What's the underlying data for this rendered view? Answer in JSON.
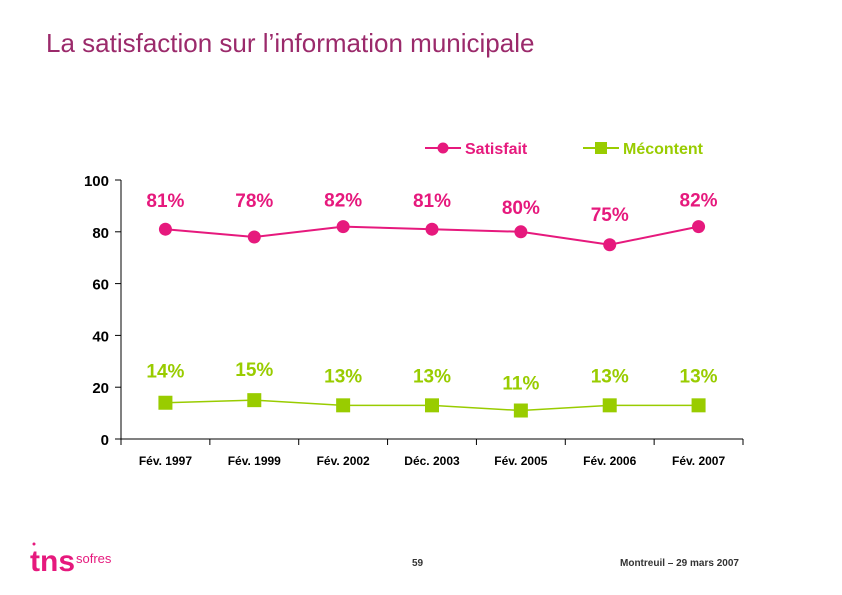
{
  "header": {
    "title": "La satisfaction sur l’information municipale"
  },
  "footer": {
    "page_number": "59",
    "location_date": "Montreuil – 29 mars 2007"
  },
  "logo": {
    "brand": "tns",
    "sub": "sofres"
  },
  "colors": {
    "title": "#9b2a6b",
    "satisfait": "#e6197d",
    "mecontent": "#99cc00"
  },
  "chart_data": {
    "type": "line",
    "categories": [
      "Fév. 1997",
      "Fév. 1999",
      "Fév. 2002",
      "Déc. 2003",
      "Fév. 2005",
      "Fév. 2006",
      "Fév. 2007"
    ],
    "ylim": [
      0,
      100
    ],
    "yticks": [
      "0",
      "20",
      "40",
      "60",
      "80",
      "100"
    ],
    "legend_position": "top-right",
    "series": [
      {
        "name": "Satisfait",
        "values": [
          81,
          78,
          82,
          81,
          80,
          75,
          82
        ],
        "labels": [
          "81%",
          "78%",
          "82%",
          "81%",
          "80%",
          "75%",
          "82%"
        ]
      },
      {
        "name": "Mécontent",
        "values": [
          14,
          15,
          13,
          13,
          11,
          13,
          13
        ],
        "labels": [
          "14%",
          "15%",
          "13%",
          "13%",
          "11%",
          "13%",
          "13%"
        ]
      }
    ]
  }
}
